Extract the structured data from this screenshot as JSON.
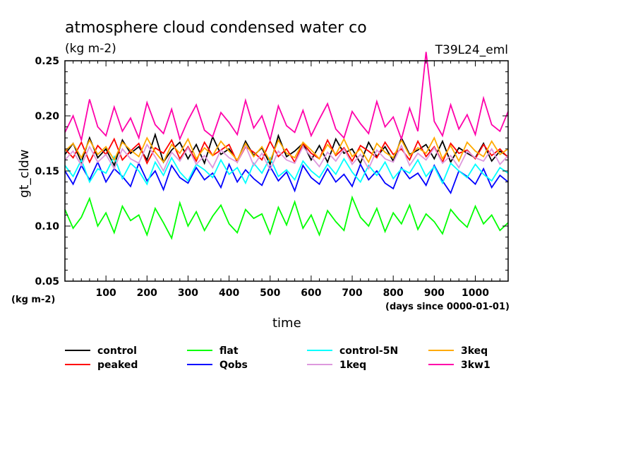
{
  "chart_data": {
    "type": "line",
    "title": "atmosphere cloud condensed water co",
    "subtitle": "(kg m-2)",
    "run_label": "T39L24_eml",
    "xlabel": "time",
    "ylabel": "gt_cldw",
    "x_units": "(days since 0000-01-01)",
    "y_units": "(kg m-2)",
    "xlim": [
      0,
      1080
    ],
    "ylim": [
      0.05,
      0.25
    ],
    "xticks": [
      100,
      200,
      300,
      400,
      500,
      600,
      700,
      800,
      900,
      1000
    ],
    "yticks": [
      "0.05",
      "0.10",
      "0.15",
      "0.20",
      "0.25"
    ],
    "grid": false,
    "legend_position": "bottom",
    "x": [
      0,
      20,
      40,
      60,
      80,
      100,
      120,
      140,
      160,
      180,
      200,
      220,
      240,
      260,
      280,
      300,
      320,
      340,
      360,
      380,
      400,
      420,
      440,
      460,
      480,
      500,
      520,
      540,
      560,
      580,
      600,
      620,
      640,
      660,
      680,
      700,
      720,
      740,
      760,
      780,
      800,
      820,
      840,
      860,
      880,
      900,
      920,
      940,
      960,
      980,
      1000,
      1020,
      1040,
      1060,
      1080
    ],
    "series": [
      {
        "name": "control",
        "color": "#000000",
        "values": [
          0.165,
          0.175,
          0.158,
          0.18,
          0.162,
          0.17,
          0.155,
          0.178,
          0.166,
          0.172,
          0.16,
          0.183,
          0.158,
          0.169,
          0.176,
          0.161,
          0.174,
          0.157,
          0.181,
          0.165,
          0.17,
          0.159,
          0.177,
          0.164,
          0.171,
          0.156,
          0.182,
          0.163,
          0.168,
          0.175,
          0.16,
          0.173,
          0.158,
          0.179,
          0.166,
          0.17,
          0.157,
          0.176,
          0.163,
          0.172,
          0.159,
          0.18,
          0.165,
          0.169,
          0.174,
          0.161,
          0.177,
          0.158,
          0.171,
          0.166,
          0.162,
          0.175,
          0.159,
          0.168,
          0.163
        ]
      },
      {
        "name": "peaked",
        "color": "#ff0000",
        "values": [
          0.17,
          0.162,
          0.176,
          0.158,
          0.173,
          0.165,
          0.179,
          0.16,
          0.168,
          0.175,
          0.157,
          0.171,
          0.166,
          0.178,
          0.161,
          0.172,
          0.159,
          0.176,
          0.164,
          0.169,
          0.174,
          0.158,
          0.172,
          0.167,
          0.16,
          0.177,
          0.163,
          0.17,
          0.158,
          0.175,
          0.166,
          0.161,
          0.178,
          0.164,
          0.171,
          0.159,
          0.173,
          0.168,
          0.162,
          0.176,
          0.165,
          0.17,
          0.16,
          0.177,
          0.163,
          0.172,
          0.158,
          0.175,
          0.166,
          0.169,
          0.161,
          0.174,
          0.164,
          0.17,
          0.162
        ]
      },
      {
        "name": "flat",
        "color": "#00ff00",
        "values": [
          0.115,
          0.098,
          0.108,
          0.125,
          0.1,
          0.112,
          0.094,
          0.118,
          0.105,
          0.11,
          0.092,
          0.116,
          0.103,
          0.089,
          0.121,
          0.1,
          0.113,
          0.096,
          0.109,
          0.119,
          0.102,
          0.094,
          0.115,
          0.107,
          0.111,
          0.093,
          0.117,
          0.101,
          0.122,
          0.098,
          0.11,
          0.092,
          0.114,
          0.104,
          0.096,
          0.126,
          0.108,
          0.1,
          0.116,
          0.095,
          0.112,
          0.102,
          0.119,
          0.097,
          0.111,
          0.104,
          0.093,
          0.115,
          0.106,
          0.099,
          0.118,
          0.102,
          0.11,
          0.096,
          0.103
        ]
      },
      {
        "name": "Qobs",
        "color": "#0000ff",
        "values": [
          0.15,
          0.138,
          0.155,
          0.142,
          0.158,
          0.14,
          0.152,
          0.145,
          0.136,
          0.157,
          0.141,
          0.15,
          0.133,
          0.155,
          0.144,
          0.139,
          0.153,
          0.142,
          0.148,
          0.135,
          0.156,
          0.14,
          0.151,
          0.143,
          0.137,
          0.154,
          0.141,
          0.149,
          0.132,
          0.155,
          0.144,
          0.138,
          0.152,
          0.14,
          0.147,
          0.136,
          0.156,
          0.142,
          0.15,
          0.139,
          0.134,
          0.153,
          0.143,
          0.148,
          0.137,
          0.155,
          0.141,
          0.13,
          0.15,
          0.145,
          0.138,
          0.152,
          0.135,
          0.146,
          0.14
        ]
      },
      {
        "name": "control-5N",
        "color": "#00ffff",
        "values": [
          0.155,
          0.145,
          0.16,
          0.14,
          0.152,
          0.148,
          0.163,
          0.143,
          0.157,
          0.15,
          0.138,
          0.158,
          0.146,
          0.162,
          0.149,
          0.141,
          0.156,
          0.151,
          0.144,
          0.16,
          0.147,
          0.153,
          0.139,
          0.157,
          0.148,
          0.162,
          0.145,
          0.151,
          0.142,
          0.159,
          0.15,
          0.144,
          0.156,
          0.147,
          0.161,
          0.149,
          0.14,
          0.155,
          0.146,
          0.158,
          0.143,
          0.152,
          0.148,
          0.16,
          0.145,
          0.154,
          0.139,
          0.157,
          0.15,
          0.144,
          0.156,
          0.147,
          0.141,
          0.153,
          0.148
        ]
      },
      {
        "name": "1keq",
        "color": "#dd99dd",
        "values": [
          0.16,
          0.168,
          0.155,
          0.172,
          0.158,
          0.165,
          0.152,
          0.17,
          0.161,
          0.157,
          0.174,
          0.163,
          0.15,
          0.167,
          0.159,
          0.171,
          0.156,
          0.164,
          0.153,
          0.169,
          0.162,
          0.158,
          0.173,
          0.155,
          0.166,
          0.151,
          0.168,
          0.16,
          0.157,
          0.172,
          0.163,
          0.154,
          0.167,
          0.159,
          0.17,
          0.156,
          0.165,
          0.152,
          0.169,
          0.161,
          0.158,
          0.173,
          0.155,
          0.166,
          0.16,
          0.171,
          0.157,
          0.164,
          0.153,
          0.168,
          0.162,
          0.159,
          0.17,
          0.156,
          0.164
        ]
      },
      {
        "name": "3keq",
        "color": "#ffaa00",
        "values": [
          0.168,
          0.175,
          0.162,
          0.178,
          0.165,
          0.172,
          0.16,
          0.176,
          0.169,
          0.163,
          0.18,
          0.167,
          0.158,
          0.174,
          0.166,
          0.179,
          0.161,
          0.171,
          0.164,
          0.177,
          0.168,
          0.16,
          0.175,
          0.163,
          0.172,
          0.159,
          0.178,
          0.166,
          0.162,
          0.176,
          0.169,
          0.161,
          0.174,
          0.165,
          0.179,
          0.163,
          0.17,
          0.158,
          0.175,
          0.167,
          0.162,
          0.178,
          0.164,
          0.171,
          0.166,
          0.18,
          0.161,
          0.173,
          0.159,
          0.176,
          0.168,
          0.163,
          0.177,
          0.165,
          0.17
        ]
      },
      {
        "name": "3kw1",
        "color": "#ff00aa",
        "values": [
          0.185,
          0.2,
          0.178,
          0.215,
          0.19,
          0.182,
          0.208,
          0.186,
          0.198,
          0.18,
          0.212,
          0.192,
          0.184,
          0.206,
          0.179,
          0.196,
          0.21,
          0.187,
          0.181,
          0.203,
          0.194,
          0.183,
          0.214,
          0.189,
          0.2,
          0.178,
          0.209,
          0.191,
          0.185,
          0.205,
          0.182,
          0.197,
          0.211,
          0.188,
          0.18,
          0.204,
          0.193,
          0.184,
          0.213,
          0.19,
          0.199,
          0.179,
          0.207,
          0.186,
          0.258,
          0.195,
          0.182,
          0.21,
          0.188,
          0.201,
          0.183,
          0.216,
          0.192,
          0.186,
          0.204
        ]
      }
    ]
  }
}
